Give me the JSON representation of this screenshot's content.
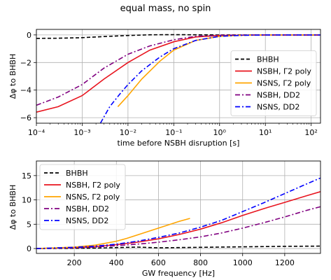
{
  "figure": {
    "title": "equal mass, no spin"
  },
  "chart_data": [
    {
      "type": "line",
      "xscale": "log",
      "xlabel": "time before NSBH disruption [s]",
      "ylabel": "Δφ to BHBH",
      "xlim": [
        0.0001,
        160
      ],
      "ylim": [
        -6.4,
        0.4
      ],
      "xticks": [
        0.0001,
        0.001,
        0.01,
        0.1,
        1,
        10,
        100
      ],
      "xtick_labels": [
        "10⁻⁴",
        "10⁻³",
        "10⁻²",
        "10⁻¹",
        "10⁰",
        "10¹",
        "10²"
      ],
      "yticks": [
        0,
        -2,
        -4,
        -6
      ],
      "ytick_labels": [
        "0",
        "−2",
        "−4",
        "−6"
      ],
      "grid": true,
      "legend_position": "right",
      "series": [
        {
          "name": "BHBH",
          "color": "#000000",
          "dash": "dashed",
          "x": [
            0.0001,
            0.0003,
            0.001,
            0.003,
            0.01,
            0.03,
            0.1,
            0.3,
            1,
            10,
            160
          ],
          "y": [
            -0.25,
            -0.24,
            -0.2,
            -0.12,
            -0.04,
            0.01,
            0.02,
            0.01,
            0.0,
            0.0,
            0.0
          ]
        },
        {
          "name": "NSBH, Γ2 poly",
          "color": "#e8141e",
          "dash": "solid",
          "x": [
            0.0001,
            0.0003,
            0.001,
            0.003,
            0.01,
            0.03,
            0.1,
            0.3,
            1,
            10,
            160
          ],
          "y": [
            -5.6,
            -5.2,
            -4.4,
            -3.2,
            -2.0,
            -1.1,
            -0.5,
            -0.15,
            -0.04,
            0.0,
            0.0
          ]
        },
        {
          "name": "NSNS, Γ2 poly",
          "color": "#ffa500",
          "dash": "solid",
          "x": [
            0.006,
            0.01,
            0.02,
            0.05,
            0.1,
            0.3,
            1,
            3,
            10,
            160
          ],
          "y": [
            -5.2,
            -4.4,
            -3.2,
            -1.9,
            -1.1,
            -0.4,
            -0.1,
            -0.02,
            0.0,
            0.0
          ]
        },
        {
          "name": "NSBH, DD2",
          "color": "#800080",
          "dash": "dashdot",
          "x": [
            0.0001,
            0.0003,
            0.001,
            0.003,
            0.01,
            0.03,
            0.1,
            0.3,
            1,
            10,
            160
          ],
          "y": [
            -5.1,
            -4.5,
            -3.6,
            -2.4,
            -1.4,
            -0.8,
            -0.35,
            -0.1,
            -0.02,
            0.0,
            0.0
          ]
        },
        {
          "name": "NSNS, DD2",
          "color": "#0000ff",
          "dash": "dashdot",
          "x": [
            0.0025,
            0.004,
            0.007,
            0.01,
            0.02,
            0.05,
            0.1,
            0.3,
            1,
            3,
            10,
            160
          ],
          "y": [
            -6.4,
            -5.2,
            -4.2,
            -3.6,
            -2.6,
            -1.6,
            -1.0,
            -0.4,
            -0.1,
            -0.03,
            0.0,
            0.0
          ]
        }
      ]
    },
    {
      "type": "line",
      "xlabel": "GW frequency [Hz]",
      "ylabel": "Δφ to BHBH",
      "xlim": [
        20,
        1370
      ],
      "ylim": [
        -1,
        18
      ],
      "xticks": [
        200,
        400,
        600,
        800,
        1000,
        1200
      ],
      "xtick_labels": [
        "200",
        "400",
        "600",
        "800",
        "1000",
        "1200"
      ],
      "yticks": [
        0,
        5,
        10,
        15
      ],
      "ytick_labels": [
        "0",
        "5",
        "10",
        "15"
      ],
      "grid": true,
      "legend_position": "top-left",
      "series": [
        {
          "name": "BHBH",
          "color": "#000000",
          "dash": "dashed",
          "x": [
            20,
            200,
            300,
            400,
            500,
            600,
            800,
            1000,
            1200,
            1370
          ],
          "y": [
            0.0,
            0.05,
            0.1,
            0.2,
            0.3,
            0.15,
            0.25,
            0.35,
            0.45,
            0.5
          ]
        },
        {
          "name": "NSBH, Γ2 poly",
          "color": "#e8141e",
          "dash": "solid",
          "x": [
            20,
            200,
            300,
            400,
            500,
            600,
            700,
            800,
            900,
            1000,
            1100,
            1200,
            1300,
            1370
          ],
          "y": [
            0.0,
            0.2,
            0.4,
            0.8,
            1.3,
            2.0,
            2.9,
            4.0,
            5.3,
            6.8,
            8.2,
            9.5,
            10.8,
            11.7
          ]
        },
        {
          "name": "NSNS, Γ2 poly",
          "color": "#ffa500",
          "dash": "solid",
          "x": [
            20,
            200,
            300,
            400,
            450,
            500,
            550,
            600,
            650,
            700,
            750
          ],
          "y": [
            0.0,
            0.3,
            0.7,
            1.5,
            2.1,
            2.8,
            3.5,
            4.2,
            4.9,
            5.6,
            6.2
          ]
        },
        {
          "name": "NSBH, DD2",
          "color": "#800080",
          "dash": "dashdot",
          "x": [
            20,
            200,
            300,
            400,
            500,
            600,
            700,
            800,
            900,
            1000,
            1100,
            1200,
            1300,
            1370
          ],
          "y": [
            0.0,
            0.15,
            0.3,
            0.6,
            0.9,
            1.3,
            1.8,
            2.4,
            3.2,
            4.2,
            5.3,
            6.5,
            7.8,
            8.6
          ]
        },
        {
          "name": "NSNS, DD2",
          "color": "#0000ff",
          "dash": "dashdot",
          "x": [
            20,
            200,
            300,
            400,
            500,
            600,
            700,
            800,
            900,
            1000,
            1100,
            1200,
            1300,
            1370
          ],
          "y": [
            0.0,
            0.25,
            0.5,
            0.9,
            1.5,
            2.3,
            3.2,
            4.4,
            5.8,
            7.6,
            9.4,
            11.3,
            13.2,
            14.5
          ]
        }
      ]
    }
  ]
}
